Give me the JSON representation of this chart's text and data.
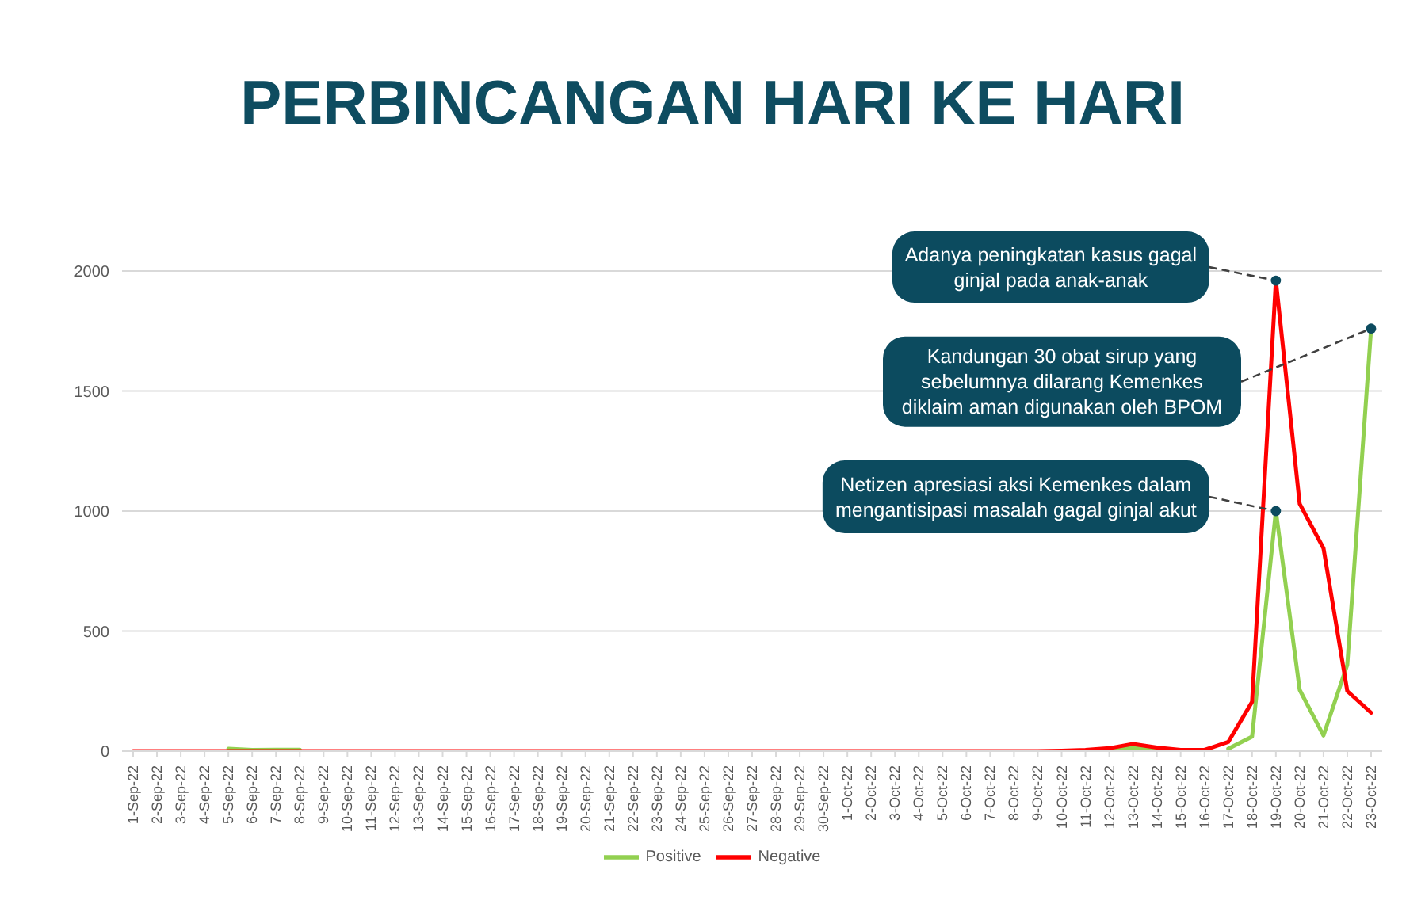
{
  "chart_data": {
    "type": "line",
    "title": "PERBINCANGAN HARI KE HARI",
    "categories": [
      "1-Sep-22",
      "2-Sep-22",
      "3-Sep-22",
      "4-Sep-22",
      "5-Sep-22",
      "6-Sep-22",
      "7-Sep-22",
      "8-Sep-22",
      "9-Sep-22",
      "10-Sep-22",
      "11-Sep-22",
      "12-Sep-22",
      "13-Sep-22",
      "14-Sep-22",
      "15-Sep-22",
      "16-Sep-22",
      "17-Sep-22",
      "18-Sep-22",
      "19-Sep-22",
      "20-Sep-22",
      "21-Sep-22",
      "22-Sep-22",
      "23-Sep-22",
      "24-Sep-22",
      "25-Sep-22",
      "26-Sep-22",
      "27-Sep-22",
      "28-Sep-22",
      "29-Sep-22",
      "30-Sep-22",
      "1-Oct-22",
      "2-Oct-22",
      "3-Oct-22",
      "4-Oct-22",
      "5-Oct-22",
      "6-Oct-22",
      "7-Oct-22",
      "8-Oct-22",
      "9-Oct-22",
      "10-Oct-22",
      "11-Oct-22",
      "12-Oct-22",
      "13-Oct-22",
      "14-Oct-22",
      "15-Oct-22",
      "16-Oct-22",
      "17-Oct-22",
      "18-Oct-22",
      "19-Oct-22",
      "20-Oct-22",
      "21-Oct-22",
      "22-Oct-22",
      "23-Oct-22"
    ],
    "series": [
      {
        "name": "Positive",
        "color": "#92d050",
        "values": [
          null,
          null,
          null,
          null,
          10,
          5,
          6,
          6,
          null,
          null,
          null,
          null,
          null,
          null,
          null,
          null,
          null,
          null,
          null,
          null,
          null,
          null,
          null,
          null,
          null,
          null,
          null,
          null,
          null,
          null,
          null,
          null,
          null,
          null,
          null,
          null,
          null,
          null,
          null,
          null,
          null,
          3,
          15,
          8,
          null,
          null,
          10,
          60,
          1000,
          255,
          65,
          360,
          1760
        ]
      },
      {
        "name": "Negative",
        "color": "#ff0000",
        "values": [
          0,
          0,
          0,
          0,
          0,
          0,
          0,
          0,
          0,
          0,
          0,
          0,
          0,
          0,
          0,
          0,
          0,
          0,
          0,
          0,
          0,
          0,
          0,
          0,
          0,
          0,
          0,
          0,
          0,
          0,
          0,
          0,
          0,
          0,
          0,
          0,
          0,
          0,
          0,
          2,
          5,
          12,
          30,
          15,
          5,
          5,
          38,
          205,
          1960,
          1030,
          845,
          250,
          160
        ]
      }
    ],
    "ylim": [
      0,
      2000
    ],
    "yticks": [
      0,
      500,
      1000,
      1500,
      2000
    ],
    "grid": "y",
    "legend": "bottom",
    "marker": "none",
    "line_style": "solid",
    "annotations": [
      {
        "text": "Adanya peningkatan kasus gagal ginjal pada anak-anak",
        "x": "19-Oct-22",
        "y": 1960
      },
      {
        "text": "Kandungan 30 obat sirup yang sebelumnya dilarang Kemenkes diklaim aman digunakan oleh BPOM",
        "x": "23-Oct-22",
        "y": 1760
      },
      {
        "text": "Netizen apresiasi aksi Kemenkes dalam mengantisipasi masalah gagal ginjal akut",
        "x": "19-Oct-22",
        "y": 1000
      }
    ]
  }
}
